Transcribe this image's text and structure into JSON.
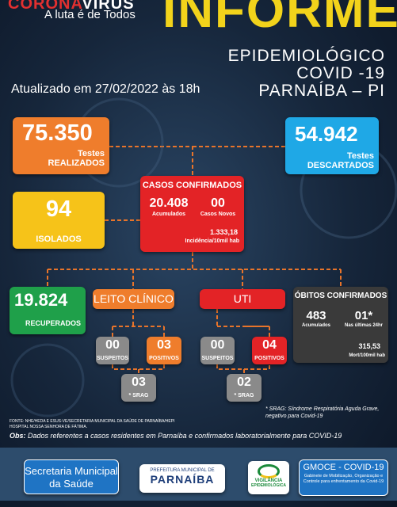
{
  "header": {
    "logo_red": "CORONA",
    "logo_white": "VIRUS",
    "slogan": "A luta é de Todos",
    "title": "INFORME",
    "subtitle": [
      "EPIDEMIOLÓGICO",
      "COVID -19",
      "PARNAÍBA – PI"
    ],
    "updated": "Atualizado em 27/02/2022 às 18h"
  },
  "testes_realizados": {
    "value": "75.350",
    "label": [
      "Testes",
      "REALIZADOS"
    ]
  },
  "testes_descartados": {
    "value": "54.942",
    "label": [
      "Testes",
      "DESCARTADOS"
    ]
  },
  "isolados": {
    "value": "94",
    "label": "ISOLADOS"
  },
  "casos_confirmados": {
    "title": "CASOS CONFIRMADOS",
    "acumulados": {
      "value": "20.408",
      "label": "Acumulados"
    },
    "novos": {
      "value": "00",
      "label": "Casos Novos"
    },
    "incidencia": {
      "value": "1.333,18",
      "label": "Incidência/10mil hab"
    }
  },
  "recuperados": {
    "value": "19.824",
    "label": "RECUPERADOS"
  },
  "leito_clinico": {
    "title": "LEITO CLÍNICO",
    "suspeitos": {
      "value": "00",
      "label": "SUSPEITOS"
    },
    "positivos": {
      "value": "03",
      "label": "POSITIVOS"
    },
    "srag": {
      "value": "03",
      "label": "* SRAG"
    }
  },
  "uti": {
    "title": "UTI",
    "suspeitos": {
      "value": "00",
      "label": "SUSPEITOS"
    },
    "positivos": {
      "value": "04",
      "label": "POSITIVOS"
    },
    "srag": {
      "value": "02",
      "label": "* SRAG"
    }
  },
  "obitos": {
    "title": "ÓBITOS CONFIRMADOS",
    "acumulados": {
      "value": "483",
      "label": "Acumulados"
    },
    "ultimas": {
      "value": "01*",
      "label": "Nas últimas 24hr"
    },
    "mortalidade": {
      "value": "315,53",
      "label": "Mort/100mil hab"
    }
  },
  "notes": {
    "srag": "* SRAG: Síndrome Respiratória Aguda Grave, negativo para Covid-19",
    "fonte": "FONTE: NHE/HEDA E ESUS-VE/SECRETARIA MUNICIPAL DA SAÚDE DE PARNAÍBA/HEPI HOSPITAL NOSSA SENHORA DE FÁTIMA.",
    "obs_label": "Obs:",
    "obs": "Dados referentes a casos residentes em Parnaíba e confirmados laboratorialmente para COVID-19"
  },
  "footer": {
    "secretaria": [
      "Secretaria Municipal",
      "da Saúde"
    ],
    "prefeitura": [
      "PREFEITURA MUNICIPAL DE",
      "PARNAÍBA"
    ],
    "vigilancia": [
      "VIGILÂNCIA",
      "EPIDEMIOLÓGICA"
    ],
    "gmoce": {
      "title": "GMOCE - COVID-19",
      "text": "Gabinete de Mobilização, Organização e Controle para enfrentamento da Covid-19"
    }
  }
}
